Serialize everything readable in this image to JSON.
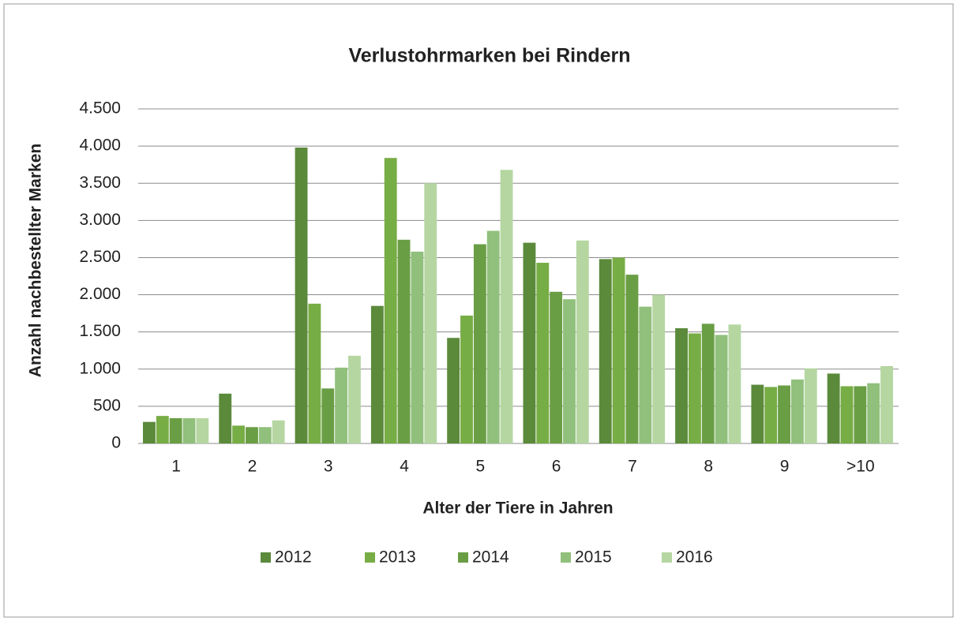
{
  "chart_data": {
    "type": "bar",
    "title": "Verlustohrmarken bei Rindern",
    "x_label": "Alter der Tiere in Jahren",
    "y_label": "Anzahl nachbestellter Marken",
    "categories": [
      "1",
      "2",
      "3",
      "4",
      "5",
      "6",
      "7",
      "8",
      "9",
      ">10"
    ],
    "series": [
      {
        "name": "2012",
        "color": "#5b8a3b",
        "values": [
          290,
          670,
          3980,
          1850,
          1420,
          2700,
          2480,
          1550,
          790,
          940
        ]
      },
      {
        "name": "2013",
        "color": "#77ad45",
        "values": [
          370,
          240,
          1880,
          3840,
          1720,
          2430,
          2500,
          1480,
          760,
          770
        ]
      },
      {
        "name": "2014",
        "color": "#6a9e45",
        "values": [
          340,
          220,
          740,
          2740,
          2680,
          2040,
          2270,
          1610,
          780,
          770
        ]
      },
      {
        "name": "2015",
        "color": "#90c07b",
        "values": [
          340,
          220,
          1020,
          2580,
          2860,
          1940,
          1840,
          1460,
          860,
          810
        ]
      },
      {
        "name": "2016",
        "color": "#b5d6a1",
        "values": [
          340,
          310,
          1180,
          3500,
          3680,
          2730,
          2000,
          1600,
          1010,
          1040
        ]
      }
    ],
    "ylim": [
      0,
      4500
    ],
    "yticks": [
      0,
      500,
      {
        "value": 1000,
        "label": "1.000"
      },
      {
        "value": 1500,
        "label": "1.500"
      },
      {
        "value": 2000,
        "label": "2.000"
      },
      {
        "value": 2500,
        "label": "2.500"
      },
      {
        "value": 3000,
        "label": "3.000"
      },
      {
        "value": 3500,
        "label": "3.500"
      },
      {
        "value": 4000,
        "label": "4.000"
      },
      {
        "value": 4500,
        "label": "4.500"
      }
    ],
    "grid": true,
    "legend": "bottom"
  }
}
